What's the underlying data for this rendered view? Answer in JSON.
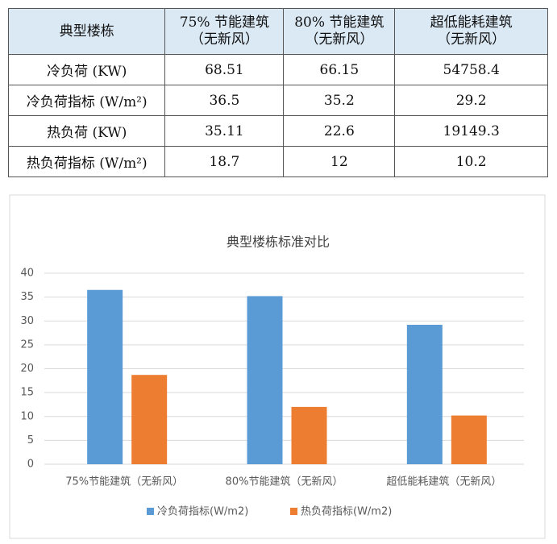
{
  "table": {
    "header": [
      "典型楼栋",
      "75% 节能建筑\n（无新风）",
      "80% 节能建筑\n（无新风）",
      "超低能耗建筑\n（无新风）"
    ],
    "rows": [
      [
        "冷负荷 (KW)",
        68.51,
        66.15,
        54758.4
      ],
      [
        "冷负荷指标 (W/m²)",
        36.5,
        35.2,
        29.2
      ],
      [
        "热负荷 (KW)",
        35.11,
        22.6,
        19149.3
      ],
      [
        "热负荷指标 (W/m²)",
        18.7,
        12,
        10.2
      ]
    ]
  },
  "chart_data": {
    "type": "bar",
    "title": "典型楼栋标准对比",
    "categories": [
      "75%节能建筑（无新风）",
      "80%节能建筑（无新风）",
      "超低能耗建筑（无新风）"
    ],
    "series": [
      {
        "name": "冷负荷指标(W/m2)",
        "color": "#5b9bd5",
        "values": [
          36.5,
          35.2,
          29.2
        ]
      },
      {
        "name": "热负荷指标(W/m2)",
        "color": "#ed7d31",
        "values": [
          18.7,
          12,
          10.2
        ]
      }
    ],
    "ylim": [
      0,
      40
    ],
    "yticks": [
      0,
      5,
      10,
      15,
      20,
      25,
      30,
      35,
      40
    ],
    "grid": true,
    "legend": "bottom"
  }
}
